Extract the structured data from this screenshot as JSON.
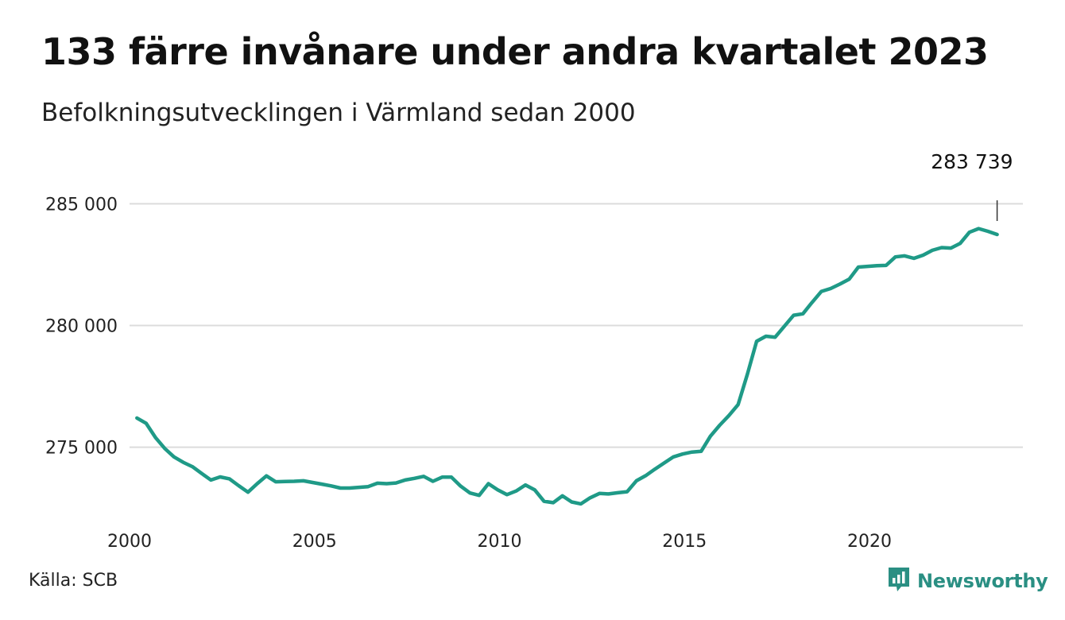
{
  "header": {
    "title": "133 färre invånare under andra kvartalet 2023",
    "subtitle": "Befolkningsutvecklingen i Värmland sedan 2000"
  },
  "footer": {
    "source": "Källa: SCB",
    "brand": "Newsworthy",
    "brand_icon": "bar-chart-speech-bubble-icon"
  },
  "colors": {
    "line": "#1f9a87",
    "grid": "#dcdcdc",
    "text": "#111111",
    "brand": "#2a8f83"
  },
  "chart_data": {
    "type": "line",
    "title": "133 färre invånare under andra kvartalet 2023",
    "subtitle": "Befolkningsutvecklingen i Värmland sedan 2000",
    "x_ticks": [
      2000,
      2005,
      2010,
      2015,
      2020
    ],
    "y_ticks": [
      275000,
      280000,
      285000
    ],
    "y_tick_labels": [
      "275 000",
      "280 000",
      "285 000"
    ],
    "ylim": [
      271500,
      286500
    ],
    "xlim": [
      2000,
      2024.6
    ],
    "grid": "horizontal",
    "last_value_label": "283 739",
    "series": [
      {
        "values": [
          276200,
          275980,
          275400,
          274950,
          274600,
          274380,
          274200,
          273920,
          273650,
          273780,
          273700,
          273420,
          273150,
          273500,
          273820,
          273580,
          273590,
          273600,
          273620,
          273550,
          273480,
          273410,
          273320,
          273320,
          273350,
          273380,
          273520,
          273500,
          273530,
          273650,
          273720,
          273800,
          273600,
          273770,
          273770,
          273400,
          273120,
          273020,
          273500,
          273250,
          273050,
          273200,
          273450,
          273250,
          272780,
          272720,
          273000,
          272750,
          272670,
          272920,
          273100,
          273080,
          273130,
          273170,
          273620,
          273830,
          274100,
          274350,
          274600,
          274720,
          274800,
          274830,
          275450,
          275900,
          276300,
          276750,
          278000,
          279350,
          279560,
          279520,
          279970,
          280420,
          280480,
          280950,
          281400,
          281520,
          281700,
          281900,
          282400,
          282430,
          282460,
          282470,
          282820,
          282860,
          282760,
          282890,
          283090,
          283200,
          283180,
          283370,
          283830,
          283980,
          283870,
          283739
        ],
        "x_start": 2000,
        "x_step": 0.25
      }
    ]
  }
}
